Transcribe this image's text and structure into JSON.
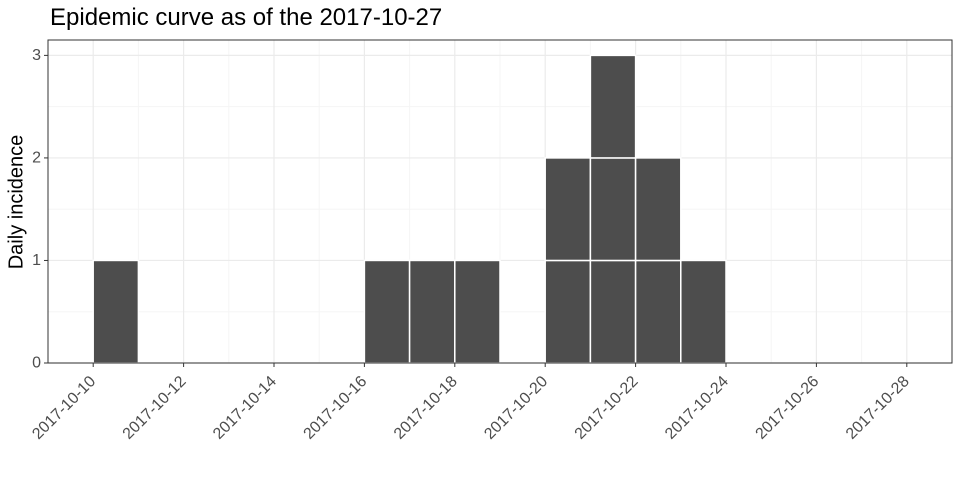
{
  "chart_data": {
    "type": "bar",
    "title": "Epidemic curve as of the 2017-10-27",
    "xlabel": "",
    "ylabel": "Daily incidence",
    "x_axis": "date",
    "xlim": [
      "2017-10-09",
      "2017-10-29"
    ],
    "ylim": [
      0,
      3.15
    ],
    "x_ticks": [
      "2017-10-10",
      "2017-10-12",
      "2017-10-14",
      "2017-10-16",
      "2017-10-18",
      "2017-10-20",
      "2017-10-22",
      "2017-10-24",
      "2017-10-26",
      "2017-10-28"
    ],
    "y_ticks": [
      0,
      1,
      2,
      3
    ],
    "bar_style": "stacked unit cases, one block per case",
    "bars": [
      {
        "date": "2017-10-10",
        "count": 1
      },
      {
        "date": "2017-10-16",
        "count": 1
      },
      {
        "date": "2017-10-17",
        "count": 1
      },
      {
        "date": "2017-10-18",
        "count": 1
      },
      {
        "date": "2017-10-20",
        "count": 2
      },
      {
        "date": "2017-10-21",
        "count": 3
      },
      {
        "date": "2017-10-22",
        "count": 2
      },
      {
        "date": "2017-10-23",
        "count": 1
      }
    ],
    "grid": true,
    "colors": {
      "bar": "#4d4d4d",
      "bar_border": "#ffffff",
      "grid_major": "#ebebeb",
      "grid_minor": "#f5f5f5",
      "panel_border": "#333333",
      "tick_text": "#4d4d4d"
    }
  }
}
